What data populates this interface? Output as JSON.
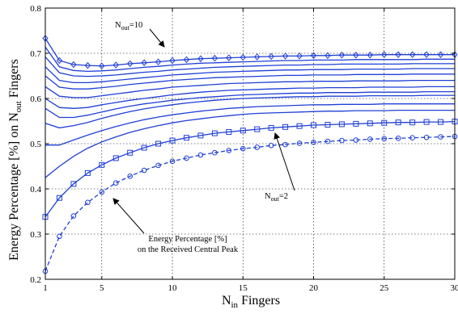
{
  "chart_data": {
    "type": "line",
    "xlabel_main": "N",
    "xlabel_sub": "in",
    "xlabel_rest": " Fingers",
    "ylabel_pre": "Energy Percentage [%] on N",
    "ylabel_sub": "out",
    "ylabel_post": " Fingers",
    "xlim": [
      1,
      30
    ],
    "ylim": [
      0.2,
      0.8
    ],
    "xticks": [
      1,
      5,
      10,
      15,
      20,
      25,
      30
    ],
    "yticks": [
      0.2,
      0.3,
      0.4,
      0.5,
      0.6,
      0.7,
      0.8
    ],
    "grid": true,
    "colors": {
      "series": "#1f3fd6",
      "grid": "#000000",
      "axis": "#000000"
    },
    "x": [
      1,
      2,
      3,
      4,
      5,
      6,
      7,
      8,
      9,
      10,
      11,
      12,
      13,
      14,
      15,
      16,
      17,
      18,
      19,
      20,
      21,
      22,
      23,
      24,
      25,
      26,
      27,
      28,
      29,
      30
    ],
    "series": [
      {
        "marker": "diamond",
        "dash": false,
        "values": [
          0.733,
          0.684,
          0.675,
          0.673,
          0.672,
          0.674,
          0.677,
          0.679,
          0.681,
          0.684,
          0.686,
          0.688,
          0.689,
          0.69,
          0.691,
          0.692,
          0.693,
          0.694,
          0.694,
          0.695,
          0.695,
          0.696,
          0.696,
          0.696,
          0.697,
          0.697,
          0.697,
          0.697,
          0.697,
          0.697
        ]
      },
      {
        "marker": "none",
        "dash": false,
        "values": [
          0.714,
          0.67,
          0.662,
          0.66,
          0.661,
          0.663,
          0.666,
          0.669,
          0.671,
          0.674,
          0.676,
          0.678,
          0.679,
          0.68,
          0.681,
          0.682,
          0.683,
          0.684,
          0.684,
          0.685,
          0.685,
          0.685,
          0.686,
          0.686,
          0.686,
          0.686,
          0.686,
          0.687,
          0.687,
          0.687
        ]
      },
      {
        "marker": "none",
        "dash": false,
        "values": [
          0.692,
          0.657,
          0.65,
          0.649,
          0.65,
          0.652,
          0.655,
          0.658,
          0.66,
          0.663,
          0.665,
          0.667,
          0.669,
          0.67,
          0.671,
          0.672,
          0.673,
          0.674,
          0.674,
          0.675,
          0.675,
          0.676,
          0.676,
          0.676,
          0.676,
          0.676,
          0.677,
          0.677,
          0.677,
          0.677
        ]
      },
      {
        "marker": "none",
        "dash": false,
        "values": [
          0.67,
          0.64,
          0.635,
          0.635,
          0.637,
          0.64,
          0.643,
          0.646,
          0.649,
          0.652,
          0.654,
          0.656,
          0.658,
          0.659,
          0.66,
          0.661,
          0.662,
          0.663,
          0.663,
          0.664,
          0.664,
          0.664,
          0.665,
          0.665,
          0.665,
          0.665,
          0.666,
          0.666,
          0.666,
          0.666
        ]
      },
      {
        "marker": "none",
        "dash": false,
        "values": [
          0.65,
          0.625,
          0.621,
          0.621,
          0.624,
          0.627,
          0.631,
          0.634,
          0.637,
          0.64,
          0.642,
          0.644,
          0.646,
          0.647,
          0.648,
          0.649,
          0.65,
          0.651,
          0.651,
          0.652,
          0.652,
          0.652,
          0.653,
          0.653,
          0.653,
          0.653,
          0.654,
          0.654,
          0.654,
          0.654
        ]
      },
      {
        "marker": "none",
        "dash": false,
        "values": [
          0.626,
          0.605,
          0.602,
          0.602,
          0.606,
          0.61,
          0.614,
          0.618,
          0.621,
          0.625,
          0.627,
          0.629,
          0.631,
          0.633,
          0.634,
          0.635,
          0.636,
          0.637,
          0.637,
          0.638,
          0.638,
          0.638,
          0.639,
          0.639,
          0.639,
          0.639,
          0.64,
          0.64,
          0.64,
          0.64
        ]
      },
      {
        "marker": "none",
        "dash": false,
        "values": [
          0.6,
          0.58,
          0.578,
          0.58,
          0.586,
          0.591,
          0.596,
          0.6,
          0.604,
          0.608,
          0.611,
          0.614,
          0.616,
          0.618,
          0.619,
          0.62,
          0.621,
          0.622,
          0.623,
          0.623,
          0.624,
          0.624,
          0.624,
          0.625,
          0.625,
          0.625,
          0.625,
          0.626,
          0.626,
          0.626
        ]
      },
      {
        "marker": "none",
        "dash": false,
        "values": [
          0.578,
          0.558,
          0.558,
          0.563,
          0.57,
          0.577,
          0.583,
          0.588,
          0.592,
          0.596,
          0.599,
          0.602,
          0.604,
          0.606,
          0.608,
          0.609,
          0.61,
          0.611,
          0.612,
          0.612,
          0.613,
          0.613,
          0.613,
          0.614,
          0.614,
          0.614,
          0.614,
          0.615,
          0.615,
          0.615
        ]
      },
      {
        "marker": "none",
        "dash": false,
        "values": [
          0.545,
          0.535,
          0.54,
          0.547,
          0.556,
          0.564,
          0.571,
          0.577,
          0.582,
          0.586,
          0.59,
          0.593,
          0.596,
          0.598,
          0.6,
          0.601,
          0.602,
          0.603,
          0.604,
          0.604,
          0.605,
          0.605,
          0.605,
          0.606,
          0.606,
          0.606,
          0.606,
          0.607,
          0.607,
          0.607
        ]
      },
      {
        "marker": "none",
        "dash": false,
        "values": [
          0.497,
          0.497,
          0.508,
          0.519,
          0.529,
          0.538,
          0.546,
          0.553,
          0.559,
          0.564,
          0.568,
          0.572,
          0.575,
          0.578,
          0.58,
          0.582,
          0.583,
          0.584,
          0.585,
          0.586,
          0.586,
          0.587,
          0.587,
          0.587,
          0.588,
          0.588,
          0.588,
          0.588,
          0.588,
          0.588
        ]
      },
      {
        "marker": "none",
        "dash": false,
        "values": [
          0.425,
          0.45,
          0.472,
          0.49,
          0.504,
          0.515,
          0.525,
          0.533,
          0.54,
          0.546,
          0.551,
          0.555,
          0.559,
          0.562,
          0.565,
          0.567,
          0.568,
          0.569,
          0.57,
          0.571,
          0.572,
          0.572,
          0.573,
          0.573,
          0.573,
          0.574,
          0.574,
          0.574,
          0.574,
          0.574
        ]
      },
      {
        "marker": "square",
        "dash": false,
        "values": [
          0.338,
          0.38,
          0.411,
          0.435,
          0.453,
          0.468,
          0.48,
          0.491,
          0.5,
          0.507,
          0.513,
          0.518,
          0.523,
          0.526,
          0.529,
          0.532,
          0.535,
          0.537,
          0.539,
          0.541,
          0.542,
          0.543,
          0.544,
          0.545,
          0.546,
          0.547,
          0.547,
          0.548,
          0.548,
          0.549
        ]
      },
      {
        "marker": "circle",
        "dash": true,
        "values": [
          0.218,
          0.295,
          0.34,
          0.37,
          0.393,
          0.413,
          0.428,
          0.441,
          0.452,
          0.461,
          0.468,
          0.475,
          0.48,
          0.485,
          0.489,
          0.492,
          0.496,
          0.498,
          0.501,
          0.503,
          0.505,
          0.507,
          0.508,
          0.51,
          0.511,
          0.512,
          0.513,
          0.514,
          0.515,
          0.516
        ]
      }
    ],
    "annotations": {
      "top_pre": "N",
      "top_sub": "out",
      "top_post": "=10",
      "mid_pre": "N",
      "mid_sub": "out",
      "mid_post": "=2",
      "bottom_line1": "Energy Percentage [%]",
      "bottom_line2": "on the Received Central Peak"
    }
  }
}
